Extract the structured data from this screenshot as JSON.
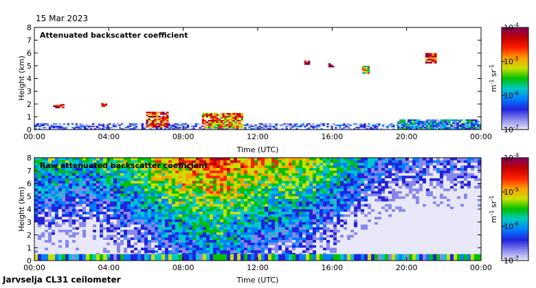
{
  "header": {
    "date": "15 Mar 2023"
  },
  "footer": {
    "station": "Jarvselja CL31 ceilometer"
  },
  "colors": {
    "cmap": [
      "#e8e8f8",
      "#8888ee",
      "#2222dd",
      "#0080ff",
      "#00c8c8",
      "#00c000",
      "#c8e000",
      "#ffa000",
      "#ff2000",
      "#c00000",
      "#800060"
    ],
    "axis": "#000000",
    "background": "#ffffff"
  },
  "chart_data": [
    {
      "type": "heatmap",
      "title": "Attenuated backscatter coefficient",
      "xlabel": "Time (UTC)",
      "ylabel": "Height (km)",
      "xlim": [
        0,
        24
      ],
      "ylim": [
        0,
        8
      ],
      "x_ticks": [
        "00:00",
        "04:00",
        "08:00",
        "12:00",
        "16:00",
        "20:00",
        "00:00"
      ],
      "y_ticks": [
        "0",
        "1",
        "2",
        "3",
        "4",
        "5",
        "6",
        "7",
        "8"
      ],
      "colorbar": {
        "label": "m-1 sr-1",
        "ticks": [
          "10-7",
          "10-6",
          "10-5",
          "10-4"
        ],
        "range": [
          -7,
          -4
        ]
      },
      "features": [
        {
          "name": "boundary-layer-aerosol",
          "t0": 0,
          "t1": 24,
          "z0": 0,
          "z1": 0.5,
          "level": -6.6
        },
        {
          "name": "morning-cloud",
          "t0": 6.0,
          "t1": 7.2,
          "z0": 0.2,
          "z1": 1.4,
          "level": -4.6
        },
        {
          "name": "midday-cloud",
          "t0": 9.0,
          "t1": 11.2,
          "z0": 0.1,
          "z1": 1.3,
          "level": -4.9
        },
        {
          "name": "early-low-cloud",
          "t0": 1.0,
          "t1": 1.6,
          "z0": 1.7,
          "z1": 2.0,
          "level": -4.7
        },
        {
          "name": "early-cloud-2",
          "t0": 3.6,
          "t1": 3.9,
          "z0": 1.8,
          "z1": 2.1,
          "level": -4.8
        },
        {
          "name": "mid-cloud-a",
          "t0": 14.5,
          "t1": 14.8,
          "z0": 5.1,
          "z1": 5.4,
          "level": -4.2
        },
        {
          "name": "mid-cloud-b",
          "t0": 15.8,
          "t1": 16.1,
          "z0": 4.9,
          "z1": 5.2,
          "level": -4.2
        },
        {
          "name": "high-cloud-c",
          "t0": 17.6,
          "t1": 18.0,
          "z0": 4.4,
          "z1": 5.0,
          "level": -5.3
        },
        {
          "name": "high-cloud-d",
          "t0": 21.0,
          "t1": 21.6,
          "z0": 5.2,
          "z1": 6.0,
          "level": -4.5
        },
        {
          "name": "evening-aerosol",
          "t0": 19.5,
          "t1": 24,
          "z0": 0,
          "z1": 0.8,
          "level": -6.0
        }
      ]
    },
    {
      "type": "heatmap",
      "title": "Raw attenuated backscatter coefficient",
      "xlabel": "Time (UTC)",
      "ylabel": "Height (km)",
      "xlim": [
        0,
        24
      ],
      "ylim": [
        0,
        8
      ],
      "x_ticks": [
        "00:00",
        "04:00",
        "08:00",
        "12:00",
        "16:00",
        "20:00",
        "00:00"
      ],
      "y_ticks": [
        "0",
        "1",
        "2",
        "3",
        "4",
        "5",
        "6",
        "7",
        "8"
      ],
      "colorbar": {
        "label": "m-1 sr-1",
        "ticks": [
          "10-7",
          "10-6",
          "10-5",
          "10-4"
        ],
        "range": [
          -7,
          -4
        ]
      },
      "noise_profile": {
        "times": [
          0,
          3,
          6,
          8,
          10,
          12,
          14,
          16,
          18,
          20,
          24
        ],
        "levels_at_top": [
          -5.6,
          -5.7,
          -5.2,
          -4.8,
          -4.6,
          -5.0,
          -5.1,
          -5.4,
          -6.0,
          -6.3,
          -6.4
        ]
      }
    }
  ]
}
